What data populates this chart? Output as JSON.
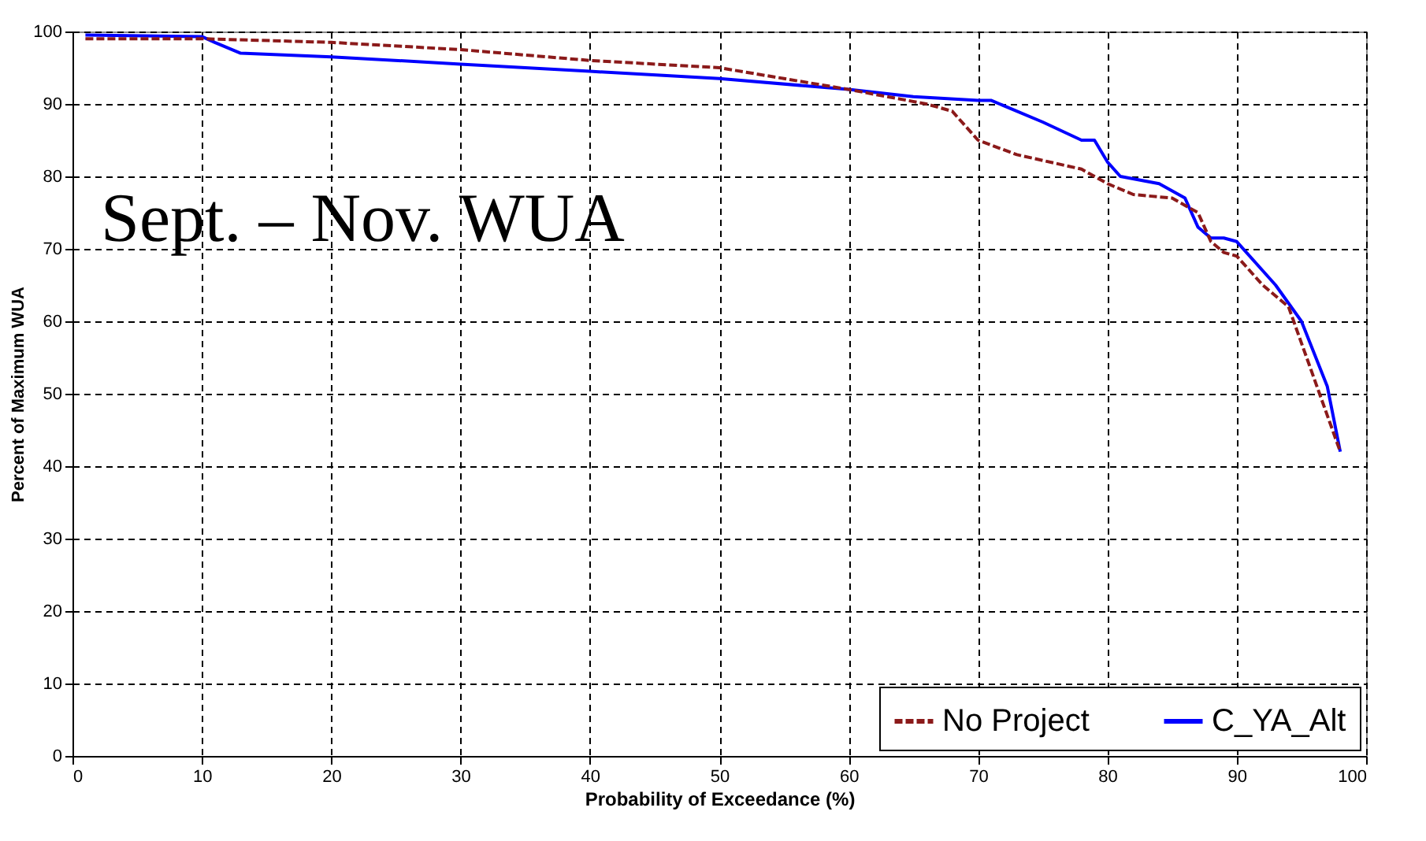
{
  "chart_data": {
    "type": "line",
    "xlabel": "Probability of Exceedance (%)",
    "ylabel": "Percent of Maximum WUA",
    "annotations": [
      "Sept. – Nov. WUA"
    ],
    "xlim": [
      0,
      100
    ],
    "xticks": [
      0,
      10,
      20,
      30,
      40,
      50,
      60,
      70,
      80,
      90,
      100
    ],
    "ylim": [
      0,
      100
    ],
    "yticks": [
      0,
      10,
      20,
      30,
      40,
      50,
      60,
      70,
      80,
      90,
      100
    ],
    "grid": true,
    "legend": "bottom right",
    "marker": "none",
    "series": [
      {
        "name": "No Project",
        "color": "#8b1a1a",
        "line_style": "dashed",
        "x": [
          1,
          10,
          20,
          30,
          40,
          50,
          55,
          60,
          66,
          68,
          70,
          73,
          78,
          80,
          82,
          85,
          87,
          88,
          89,
          90,
          92,
          94,
          96,
          98
        ],
        "values": [
          99,
          99,
          98.5,
          97.5,
          96,
          95,
          93.5,
          92,
          90,
          89,
          85,
          83,
          81,
          79,
          77.5,
          77,
          75,
          71,
          69.5,
          69,
          65,
          62,
          52,
          42
        ]
      },
      {
        "name": "C_YA_Alt",
        "color": "#0000ff",
        "line_style": "solid",
        "x": [
          1,
          10,
          11,
          13,
          20,
          30,
          40,
          50,
          60,
          65,
          70,
          71,
          75,
          78,
          79,
          80,
          81,
          84,
          86,
          87,
          88,
          89,
          90,
          93,
          95,
          97,
          98
        ],
        "values": [
          99.5,
          99.3,
          98.5,
          97,
          96.5,
          95.5,
          94.5,
          93.5,
          92,
          91,
          90.5,
          90.5,
          87.5,
          85,
          85,
          82,
          80,
          79,
          77,
          73,
          71.5,
          71.5,
          71,
          65,
          60,
          51,
          42
        ]
      }
    ]
  }
}
